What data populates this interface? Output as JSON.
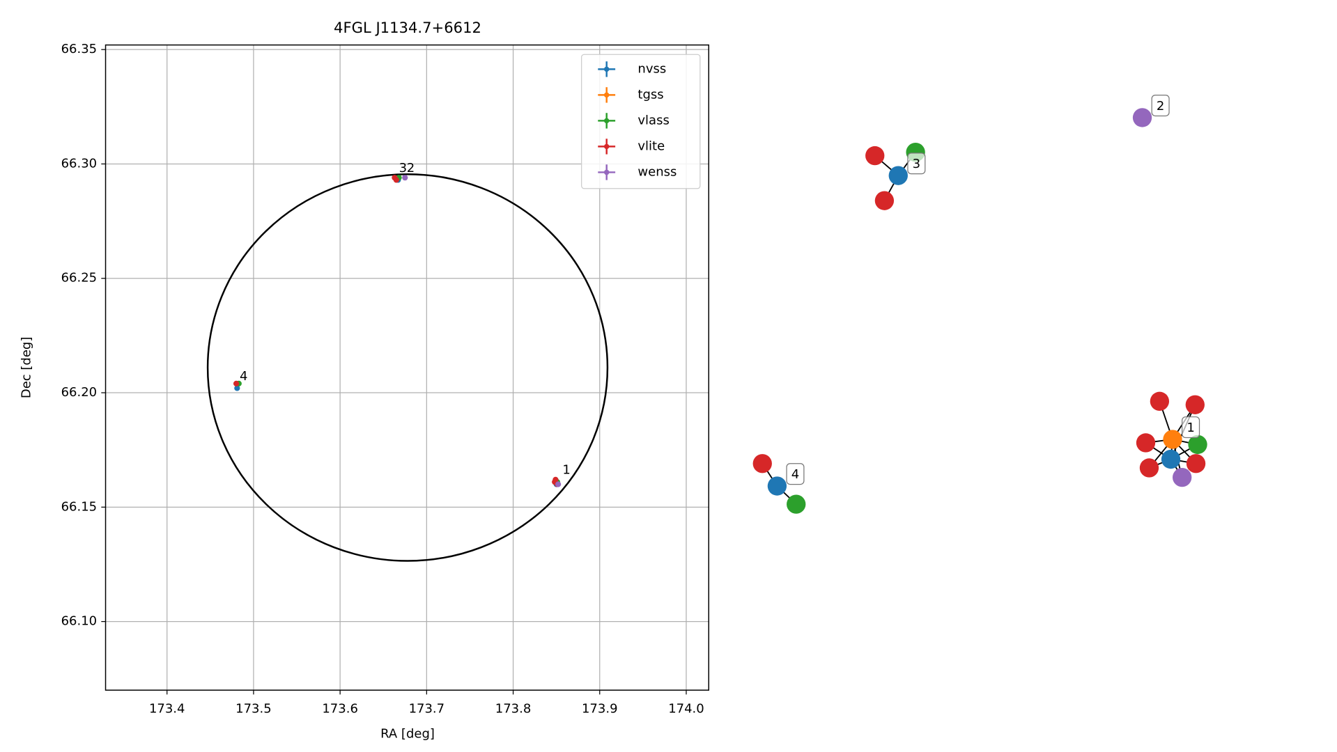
{
  "chart_data": [
    {
      "type": "scatter",
      "title": "4FGL J1134.7+6612",
      "xlabel": "RA [deg]",
      "ylabel": "Dec [deg]",
      "xlim": [
        173.329,
        174.026
      ],
      "ylim": [
        66.07,
        66.352
      ],
      "xticks": [
        173.4,
        173.5,
        173.6,
        173.7,
        173.8,
        173.9,
        {
          "value": 174.0,
          "label": "174.0"
        }
      ],
      "yticks": [
        {
          "value": 66.1,
          "label": "66.10"
        },
        66.15,
        {
          "value": 66.2,
          "label": "66.20"
        },
        66.25,
        {
          "value": 66.3,
          "label": "66.30"
        },
        66.35
      ],
      "grid": true,
      "legend": "upper right",
      "ellipse": {
        "x": 173.678,
        "y": 66.211,
        "rx": 0.231,
        "ry": 0.0845
      },
      "series": [
        {
          "name": "nvss",
          "color": "#1f77b4",
          "x": [
            173.481,
            173.667,
            173.85
          ],
          "values": [
            66.202,
            66.293,
            66.16
          ]
        },
        {
          "name": "tgss",
          "color": "#ff7f0e",
          "x": [
            173.849
          ],
          "values": [
            66.161
          ]
        },
        {
          "name": "vlass",
          "color": "#2ca02c",
          "x": [
            173.483,
            173.668,
            173.851
          ],
          "values": [
            66.204,
            66.294,
            66.161
          ]
        },
        {
          "name": "vlite",
          "color": "#d62728",
          "x": [
            173.48,
            173.663,
            173.665,
            173.848,
            173.849,
            173.851
          ],
          "values": [
            66.204,
            66.294,
            66.293,
            66.161,
            66.162,
            66.16
          ]
        },
        {
          "name": "wenss",
          "color": "#9467bd",
          "x": [
            173.675,
            173.852
          ],
          "values": [
            66.294,
            66.16
          ]
        }
      ],
      "annotations": [
        {
          "text": "1",
          "x": 173.857,
          "y": 66.166
        },
        {
          "text": "3",
          "x": 173.668,
          "y": 66.298
        },
        {
          "text": "2",
          "x": 173.677,
          "y": 66.298
        },
        {
          "text": "4",
          "x": 173.484,
          "y": 66.207
        }
      ]
    },
    {
      "type": "network",
      "nodes": [
        {
          "color": "#ff7f0e"
        },
        {
          "color": "#1f77b4"
        },
        {
          "color": "#d62728"
        },
        {
          "color": "#d62728"
        },
        {
          "color": "#d62728"
        },
        {
          "color": "#d62728"
        },
        {
          "color": "#d62728"
        },
        {
          "color": "#2ca02c"
        },
        {
          "color": "#9467bd"
        },
        {
          "color": "#9467bd"
        },
        {
          "color": "#1f77b4"
        },
        {
          "color": "#d62728"
        },
        {
          "color": "#d62728"
        },
        {
          "color": "#2ca02c"
        },
        {
          "color": "#1f77b4"
        },
        {
          "color": "#d62728"
        },
        {
          "color": "#2ca02c"
        }
      ],
      "edges": [
        [
          0,
          1
        ],
        [
          0,
          2
        ],
        [
          0,
          3
        ],
        [
          0,
          4
        ],
        [
          0,
          5
        ],
        [
          0,
          6
        ],
        [
          0,
          7
        ],
        [
          0,
          8
        ],
        [
          1,
          4
        ],
        [
          1,
          5
        ],
        [
          1,
          6
        ],
        [
          1,
          7
        ],
        [
          1,
          8
        ],
        [
          1,
          3
        ],
        [
          10,
          11
        ],
        [
          10,
          12
        ],
        [
          10,
          13
        ],
        [
          14,
          15
        ],
        [
          14,
          16
        ]
      ],
      "labels": [
        {
          "text": "1",
          "node": 0
        },
        {
          "text": "2",
          "node": 9
        },
        {
          "text": "3",
          "node": 10
        },
        {
          "text": "4",
          "node": 14
        }
      ]
    }
  ]
}
